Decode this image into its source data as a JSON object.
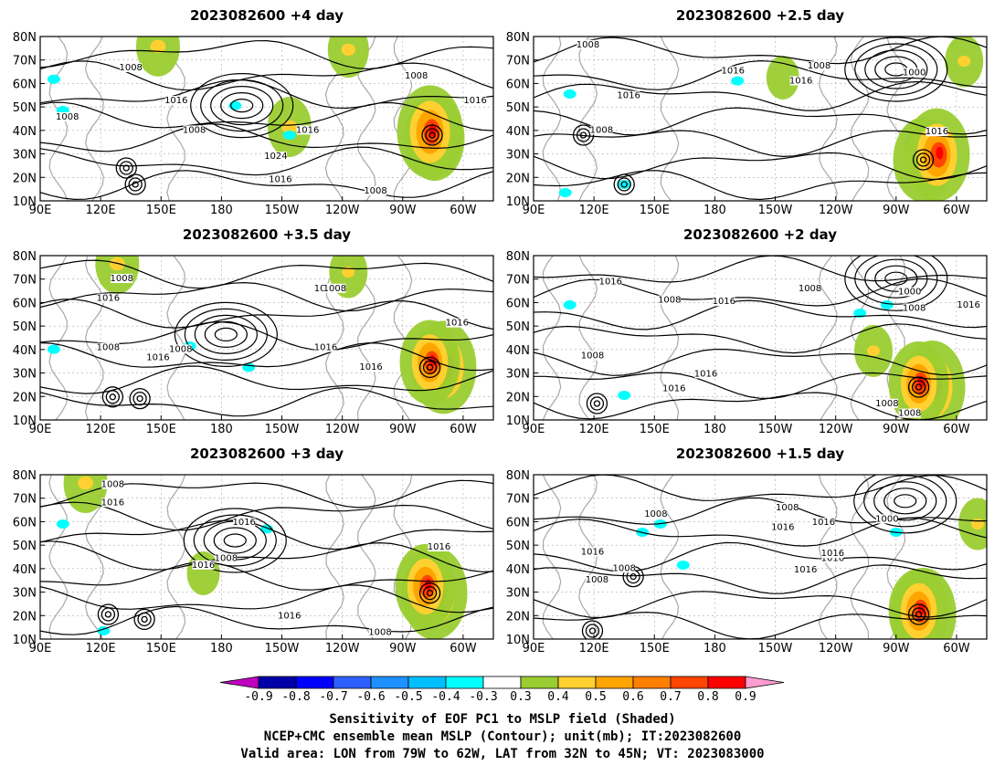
{
  "panels": [
    {
      "title": "2023082600  +4 day",
      "contour_labels": [
        "1008",
        "1008",
        "1016",
        "1016",
        "1008",
        "1024",
        "1016",
        "1008",
        "1008",
        "1016"
      ],
      "warm": [
        [
          0.87,
          0.62,
          0.9,
          0.8
        ],
        [
          0.86,
          0.58,
          1.0,
          0.55
        ],
        [
          0.55,
          0.55,
          0.6,
          0.4
        ],
        [
          0.26,
          0.06,
          0.6,
          0.35
        ],
        [
          0.68,
          0.08,
          0.55,
          0.35
        ]
      ],
      "cool": [
        [
          0.43,
          0.42
        ],
        [
          0.05,
          0.45
        ],
        [
          0.03,
          0.26
        ],
        [
          0.55,
          0.6
        ]
      ],
      "lows": [
        [
          0.865,
          0.6
        ],
        [
          0.19,
          0.8
        ],
        [
          0.21,
          0.9
        ]
      ],
      "ring": [
        0.445,
        0.42
      ]
    },
    {
      "title": "2023082600  +2.5 day",
      "contour_labels": [
        "1008",
        "1008",
        "1016",
        "1016",
        "1016",
        "1008",
        "1000",
        "1016"
      ],
      "warm": [
        [
          0.86,
          0.75,
          0.9,
          0.85
        ],
        [
          0.89,
          0.72,
          1.0,
          0.6
        ],
        [
          0.55,
          0.25,
          0.4,
          0.3
        ],
        [
          0.95,
          0.15,
          0.5,
          0.3
        ]
      ],
      "cool": [
        [
          0.08,
          0.35
        ],
        [
          0.2,
          0.9
        ],
        [
          0.07,
          0.95
        ],
        [
          0.45,
          0.27
        ]
      ],
      "lows": [
        [
          0.86,
          0.75
        ],
        [
          0.2,
          0.9
        ],
        [
          0.11,
          0.6
        ]
      ],
      "ring": [
        0.8,
        0.2
      ]
    },
    {
      "title": "2023082600  +3.5 day",
      "contour_labels": [
        "1008",
        "1016",
        "1016",
        "1008",
        "1016",
        "1008",
        "1008",
        "1016",
        "1016",
        "1016"
      ],
      "warm": [
        [
          0.89,
          0.68,
          1.0,
          0.95
        ],
        [
          0.86,
          0.65,
          0.9,
          0.9
        ],
        [
          0.17,
          0.05,
          0.6,
          0.35
        ],
        [
          0.68,
          0.1,
          0.5,
          0.35
        ]
      ],
      "cool": [
        [
          0.03,
          0.57
        ],
        [
          0.46,
          0.68
        ],
        [
          0.33,
          0.55
        ]
      ],
      "lows": [
        [
          0.86,
          0.68
        ],
        [
          0.16,
          0.86
        ],
        [
          0.22,
          0.87
        ]
      ],
      "ring": [
        0.41,
        0.48
      ]
    },
    {
      "title": "2023082600  +2 day",
      "contour_labels": [
        "1016",
        "1008",
        "1016",
        "1008",
        "1000",
        "1008",
        "1016",
        "1008",
        "1016",
        "1016",
        "1008",
        "1008"
      ],
      "warm": [
        [
          0.88,
          0.8,
          1.0,
          0.9
        ],
        [
          0.85,
          0.78,
          0.9,
          0.85
        ],
        [
          0.75,
          0.58,
          0.5,
          0.4
        ]
      ],
      "cool": [
        [
          0.08,
          0.3
        ],
        [
          0.72,
          0.35
        ],
        [
          0.2,
          0.85
        ],
        [
          0.78,
          0.3
        ]
      ],
      "lows": [
        [
          0.85,
          0.8
        ],
        [
          0.14,
          0.9
        ]
      ],
      "ring": [
        0.8,
        0.14
      ]
    },
    {
      "title": "2023082600  +3 day",
      "contour_labels": [
        "1008",
        "1016",
        "1016",
        "1008",
        "1016",
        "1016",
        "1016",
        "1008"
      ],
      "warm": [
        [
          0.87,
          0.72,
          1.0,
          0.85
        ],
        [
          0.85,
          0.68,
          0.9,
          0.9
        ],
        [
          0.1,
          0.05,
          0.6,
          0.3
        ],
        [
          0.36,
          0.6,
          0.4,
          0.4
        ]
      ],
      "cool": [
        [
          0.14,
          0.95
        ],
        [
          0.5,
          0.33
        ],
        [
          0.05,
          0.3
        ]
      ],
      "lows": [
        [
          0.86,
          0.72
        ],
        [
          0.15,
          0.85
        ],
        [
          0.23,
          0.88
        ]
      ],
      "ring": [
        0.43,
        0.4
      ]
    },
    {
      "title": "2023082600  +1.5 day",
      "contour_labels": [
        "1008",
        "1008",
        "1016",
        "1016",
        "1016",
        "1008",
        "1000",
        "1016",
        "1016",
        "1008",
        "1016"
      ],
      "warm": [
        [
          0.86,
          0.85,
          1.0,
          0.9
        ],
        [
          0.85,
          0.83,
          0.9,
          0.85
        ],
        [
          0.98,
          0.3,
          0.5,
          0.45
        ]
      ],
      "cool": [
        [
          0.24,
          0.35
        ],
        [
          0.33,
          0.55
        ],
        [
          0.28,
          0.3
        ],
        [
          0.8,
          0.35
        ]
      ],
      "lows": [
        [
          0.85,
          0.85
        ],
        [
          0.13,
          0.95
        ],
        [
          0.22,
          0.62
        ]
      ],
      "ring": [
        0.82,
        0.16
      ]
    }
  ],
  "axes": {
    "x_ticks": [
      "90E",
      "120E",
      "150E",
      "180",
      "150W",
      "120W",
      "90W",
      "60W"
    ],
    "y_ticks": [
      "80N",
      "70N",
      "60N",
      "50N",
      "40N",
      "30N",
      "20N",
      "10N"
    ]
  },
  "colorbar": {
    "ticks": [
      "-0.9",
      "-0.8",
      "-0.7",
      "-0.6",
      "-0.5",
      "-0.4",
      "-0.3",
      "0.3",
      "0.4",
      "0.5",
      "0.6",
      "0.7",
      "0.8",
      "0.9"
    ],
    "colors": [
      "#0000a8",
      "#0000ff",
      "#2d60ff",
      "#1e90ff",
      "#00bfff",
      "#00ffff",
      "#ffffff",
      "#9acd32",
      "#ffd030",
      "#ffa500",
      "#ff7f00",
      "#ff4500",
      "#ff0000"
    ],
    "end_colors": [
      "#c000c0",
      "#ff9ccf"
    ]
  },
  "caption": [
    "Sensitivity of EOF PC1 to MSLP field (Shaded)",
    "NCEP+CMC ensemble mean MSLP (Contour); unit(mb); IT:2023082600",
    "Valid area: LON from 79W to 62W, LAT from 32N to 45N; VT: 2023083000"
  ]
}
